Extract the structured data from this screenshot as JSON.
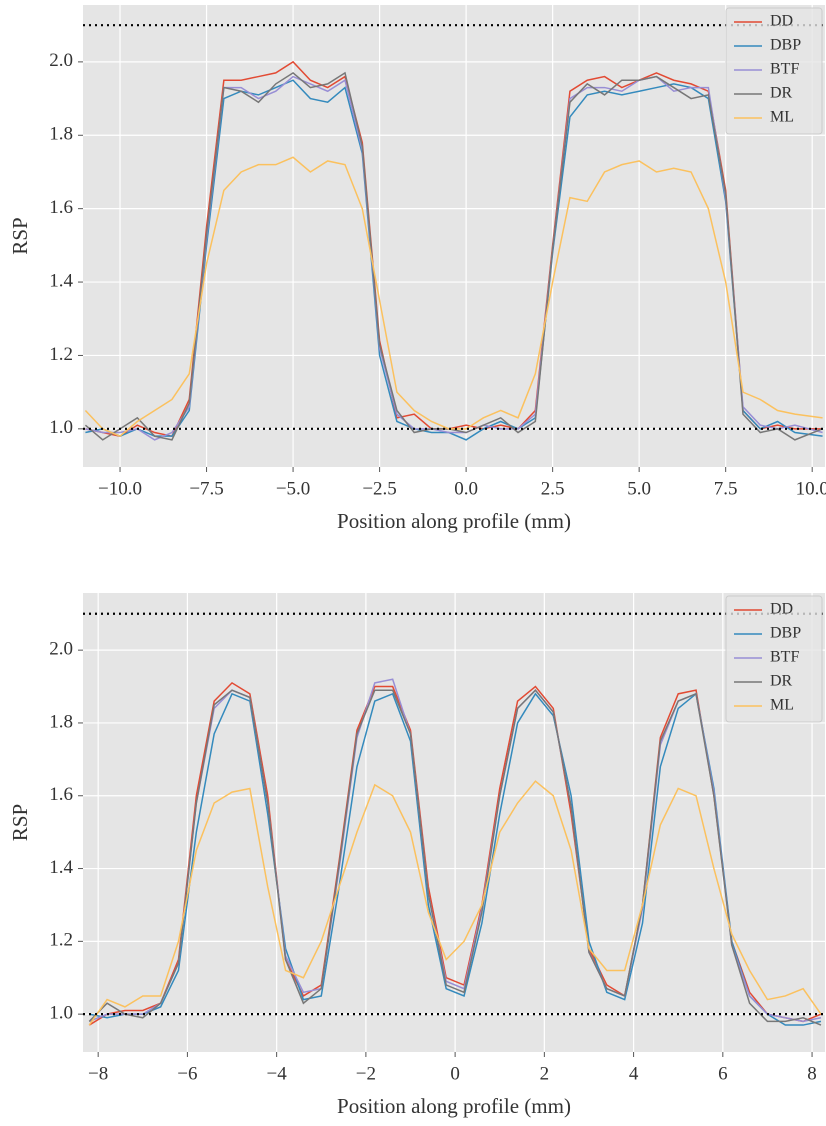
{
  "chart_data": [
    {
      "type": "line",
      "xlabel": "Position along profile (mm)",
      "ylabel": "RSP",
      "grid": true,
      "legend": "upper right",
      "xlim": [
        -11.07,
        10.37
      ],
      "ylim": [
        0.896,
        2.155
      ],
      "xticks": [
        {
          "value": -10,
          "label": "−10.0"
        },
        {
          "value": -7.5,
          "label": "−7.5"
        },
        {
          "value": -5,
          "label": "−5.0"
        },
        {
          "value": -2.5,
          "label": "−2.5"
        },
        {
          "value": 0,
          "label": "0.0"
        },
        2.5,
        {
          "value": 5,
          "label": "5.0"
        },
        7.5,
        {
          "value": 10,
          "label": "10.0"
        }
      ],
      "yticks": [
        {
          "value": 1,
          "label": "1.0"
        },
        1.2,
        1.4,
        1.6,
        1.8,
        {
          "value": 2,
          "label": "2.0"
        }
      ],
      "hlines": [
        1.0,
        2.1
      ],
      "x": [
        -11,
        -10.5,
        -10,
        -9.5,
        -9,
        -8.5,
        -8,
        -7.5,
        -7,
        -6.5,
        -6,
        -5.5,
        -5,
        -4.5,
        -4,
        -3.5,
        -3,
        -2.5,
        -2,
        -1.5,
        -1,
        -0.5,
        0,
        0.5,
        1,
        1.5,
        2,
        2.5,
        3,
        3.5,
        4,
        4.5,
        5,
        5.5,
        6,
        6.5,
        7,
        7.5,
        8,
        8.5,
        9,
        9.5,
        10.3
      ],
      "series": [
        {
          "name": "DD",
          "color": "#E24A33",
          "values": [
            1.0,
            0.99,
            0.98,
            1.01,
            0.99,
            0.98,
            1.08,
            1.55,
            1.95,
            1.95,
            1.96,
            1.97,
            2.0,
            1.95,
            1.93,
            1.96,
            1.78,
            1.24,
            1.03,
            1.04,
            1.0,
            1.0,
            1.01,
            1.0,
            1.01,
            1.0,
            1.05,
            1.5,
            1.92,
            1.95,
            1.96,
            1.93,
            1.95,
            1.97,
            1.95,
            1.94,
            1.92,
            1.65,
            1.05,
            1.0,
            1.01,
            1.0,
            1.0
          ]
        },
        {
          "name": "DBP",
          "color": "#348ABD",
          "values": [
            0.99,
            1.0,
            0.98,
            1.0,
            0.98,
            0.98,
            1.05,
            1.5,
            1.9,
            1.92,
            1.91,
            1.93,
            1.95,
            1.9,
            1.89,
            1.93,
            1.75,
            1.2,
            1.02,
            1.0,
            0.99,
            0.99,
            0.97,
            1.0,
            1.02,
            1.0,
            1.03,
            1.48,
            1.85,
            1.91,
            1.92,
            1.91,
            1.92,
            1.93,
            1.94,
            1.93,
            1.9,
            1.62,
            1.05,
            1.0,
            1.02,
            0.99,
            0.98
          ]
        },
        {
          "name": "BTF",
          "color": "#988ED5",
          "values": [
            1.0,
            0.99,
            0.99,
            1.0,
            0.97,
            0.99,
            1.06,
            1.52,
            1.93,
            1.93,
            1.9,
            1.92,
            1.96,
            1.94,
            1.92,
            1.95,
            1.76,
            1.22,
            1.04,
            1.0,
            1.0,
            0.99,
            0.99,
            1.01,
            1.0,
            1.0,
            1.04,
            1.49,
            1.9,
            1.93,
            1.93,
            1.92,
            1.95,
            1.96,
            1.92,
            1.93,
            1.93,
            1.63,
            1.06,
            1.01,
            1.0,
            1.01,
            0.99
          ]
        },
        {
          "name": "DR",
          "color": "#777777",
          "values": [
            1.01,
            0.97,
            1.0,
            1.03,
            0.98,
            0.97,
            1.07,
            1.53,
            1.93,
            1.92,
            1.89,
            1.94,
            1.97,
            1.93,
            1.94,
            1.97,
            1.77,
            1.23,
            1.05,
            0.99,
            1.0,
            1.0,
            0.99,
            1.01,
            1.03,
            0.99,
            1.02,
            1.49,
            1.89,
            1.94,
            1.91,
            1.95,
            1.95,
            1.96,
            1.93,
            1.9,
            1.91,
            1.64,
            1.04,
            0.99,
            1.0,
            0.97,
            1.0
          ]
        },
        {
          "name": "ML",
          "color": "#FBC15E",
          "values": [
            1.05,
            1.0,
            0.98,
            1.02,
            1.05,
            1.08,
            1.15,
            1.45,
            1.65,
            1.7,
            1.72,
            1.72,
            1.74,
            1.7,
            1.73,
            1.72,
            1.6,
            1.35,
            1.1,
            1.05,
            1.02,
            1.0,
            1.0,
            1.03,
            1.05,
            1.03,
            1.15,
            1.4,
            1.63,
            1.62,
            1.7,
            1.72,
            1.73,
            1.7,
            1.71,
            1.7,
            1.6,
            1.4,
            1.1,
            1.08,
            1.05,
            1.04,
            1.03
          ]
        }
      ]
    },
    {
      "type": "line",
      "xlabel": "Position along profile (mm)",
      "ylabel": "RSP",
      "grid": true,
      "legend": "upper right",
      "xlim": [
        -8.34,
        8.29
      ],
      "ylim": [
        0.896,
        2.157
      ],
      "xticks": [
        {
          "value": -8,
          "label": "−8"
        },
        {
          "value": -6,
          "label": "−6"
        },
        {
          "value": -4,
          "label": "−4"
        },
        {
          "value": -2,
          "label": "−2"
        },
        0,
        2,
        4,
        6,
        8
      ],
      "yticks": [
        {
          "value": 1,
          "label": "1.0"
        },
        1.2,
        1.4,
        1.6,
        1.8,
        {
          "value": 2,
          "label": "2.0"
        }
      ],
      "hlines": [
        1.0,
        2.1
      ],
      "x": [
        -8.2,
        -7.8,
        -7.4,
        -7.0,
        -6.6,
        -6.2,
        -5.8,
        -5.4,
        -5.0,
        -4.6,
        -4.2,
        -3.8,
        -3.4,
        -3.0,
        -2.6,
        -2.2,
        -1.8,
        -1.4,
        -1.0,
        -0.6,
        -0.2,
        0.2,
        0.6,
        1.0,
        1.4,
        1.8,
        2.2,
        2.6,
        3.0,
        3.4,
        3.8,
        4.2,
        4.6,
        5.0,
        5.4,
        5.8,
        6.2,
        6.6,
        7.0,
        7.4,
        7.8,
        8.2
      ],
      "series": [
        {
          "name": "DD",
          "color": "#E24A33",
          "values": [
            0.97,
            1.0,
            1.01,
            1.01,
            1.03,
            1.15,
            1.6,
            1.86,
            1.91,
            1.88,
            1.6,
            1.15,
            1.05,
            1.08,
            1.42,
            1.78,
            1.9,
            1.9,
            1.78,
            1.35,
            1.1,
            1.08,
            1.3,
            1.62,
            1.86,
            1.9,
            1.84,
            1.55,
            1.18,
            1.08,
            1.05,
            1.3,
            1.76,
            1.88,
            1.89,
            1.6,
            1.2,
            1.06,
            1.0,
            0.99,
            0.98,
            1.0
          ]
        },
        {
          "name": "DBP",
          "color": "#348ABD",
          "values": [
            1.0,
            0.99,
            1.0,
            1.0,
            1.02,
            1.12,
            1.5,
            1.77,
            1.88,
            1.86,
            1.55,
            1.18,
            1.04,
            1.05,
            1.35,
            1.68,
            1.86,
            1.88,
            1.75,
            1.3,
            1.07,
            1.05,
            1.25,
            1.55,
            1.8,
            1.88,
            1.82,
            1.6,
            1.2,
            1.06,
            1.04,
            1.25,
            1.68,
            1.84,
            1.88,
            1.62,
            1.2,
            1.05,
            1.0,
            0.97,
            0.97,
            0.98
          ]
        },
        {
          "name": "BTF",
          "color": "#988ED5",
          "values": [
            0.98,
            1.0,
            1.0,
            1.0,
            1.03,
            1.14,
            1.58,
            1.84,
            1.89,
            1.87,
            1.58,
            1.16,
            1.06,
            1.07,
            1.4,
            1.76,
            1.91,
            1.92,
            1.77,
            1.33,
            1.09,
            1.07,
            1.29,
            1.6,
            1.84,
            1.89,
            1.83,
            1.57,
            1.17,
            1.07,
            1.05,
            1.29,
            1.74,
            1.86,
            1.88,
            1.61,
            1.19,
            1.05,
            1.0,
            0.99,
            0.98,
            0.99
          ]
        },
        {
          "name": "DR",
          "color": "#777777",
          "values": [
            0.98,
            1.03,
            1.0,
            0.99,
            1.03,
            1.14,
            1.58,
            1.85,
            1.89,
            1.87,
            1.58,
            1.15,
            1.03,
            1.07,
            1.41,
            1.77,
            1.89,
            1.89,
            1.77,
            1.33,
            1.08,
            1.06,
            1.28,
            1.6,
            1.84,
            1.89,
            1.83,
            1.57,
            1.17,
            1.07,
            1.05,
            1.3,
            1.75,
            1.86,
            1.88,
            1.6,
            1.19,
            1.03,
            0.98,
            0.98,
            0.99,
            0.97
          ]
        },
        {
          "name": "ML",
          "color": "#FBC15E",
          "values": [
            0.97,
            1.04,
            1.02,
            1.05,
            1.05,
            1.2,
            1.45,
            1.58,
            1.61,
            1.62,
            1.35,
            1.12,
            1.1,
            1.2,
            1.35,
            1.5,
            1.63,
            1.6,
            1.5,
            1.28,
            1.15,
            1.2,
            1.3,
            1.5,
            1.58,
            1.64,
            1.6,
            1.45,
            1.18,
            1.12,
            1.12,
            1.3,
            1.52,
            1.62,
            1.6,
            1.4,
            1.22,
            1.12,
            1.04,
            1.05,
            1.07,
            1.0
          ]
        }
      ]
    }
  ]
}
